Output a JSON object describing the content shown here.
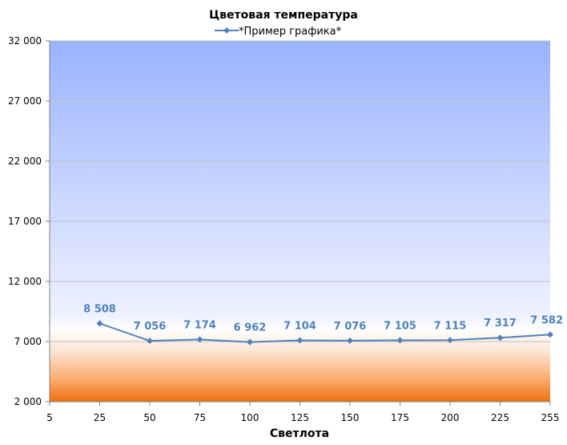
{
  "chart_data": {
    "type": "line",
    "title": "Цветовая температура",
    "xlabel": "Светлота",
    "ylabel": "",
    "x_ticks": [
      "5",
      "25",
      "50",
      "75",
      "100",
      "125",
      "150",
      "175",
      "200",
      "225",
      "255"
    ],
    "y_ticks": [
      "2 000",
      "7 000",
      "12 000",
      "17 000",
      "22 000",
      "27 000",
      "32 000"
    ],
    "ylim": [
      2000,
      32000
    ],
    "grid": true,
    "legend_position": "top",
    "series": [
      {
        "name": "*Пример графика*",
        "color": "#4f81bd",
        "marker": "diamond",
        "x": [
          25,
          50,
          75,
          100,
          125,
          150,
          175,
          200,
          225,
          255
        ],
        "values": [
          8508,
          7056,
          7174,
          6962,
          7104,
          7076,
          7105,
          7115,
          7317,
          7582
        ],
        "labels": [
          "8 508",
          "7 056",
          "7 174",
          "6 962",
          "7 104",
          "7 076",
          "7 105",
          "7 115",
          "7 317",
          "7 582"
        ]
      }
    ]
  }
}
